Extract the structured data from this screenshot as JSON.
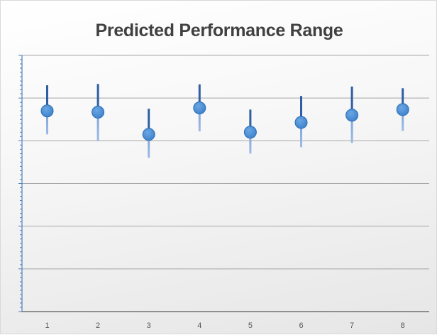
{
  "chart_data": {
    "type": "scatter",
    "title": "Predicted Performance Range",
    "xlabel": "",
    "ylabel": "",
    "categories": [
      "1",
      "2",
      "3",
      "4",
      "5",
      "6",
      "7",
      "8"
    ],
    "series": [
      {
        "values": [
          4.7,
          4.67,
          4.15,
          4.77,
          4.2,
          4.43,
          4.6,
          4.73
        ],
        "low": [
          4.15,
          4.0,
          3.6,
          4.22,
          3.7,
          3.85,
          3.95,
          4.23
        ],
        "high": [
          5.3,
          5.33,
          4.75,
          5.32,
          4.73,
          5.05,
          5.27,
          5.23
        ]
      }
    ],
    "ylim": [
      0,
      6
    ],
    "grid": true,
    "legend": "none",
    "colors": {
      "upper_bar": "#2e5fa3",
      "lower_bar": "#7ea3d9",
      "marker": "#3d82cc",
      "marker_edge": "#2a6db5",
      "gridline": "#a6a6a6",
      "axis": "#4a7fc1"
    }
  }
}
